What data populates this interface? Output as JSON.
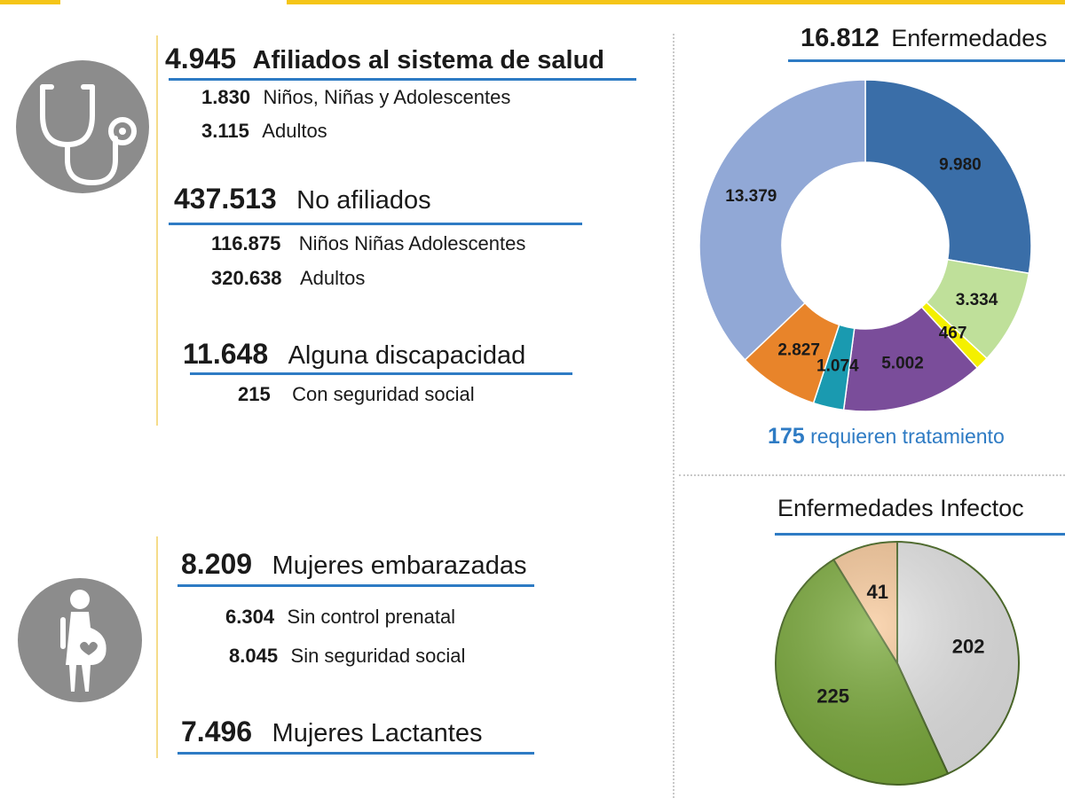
{
  "health": {
    "affiliated": {
      "value": "4.945",
      "label": "Afiliados al sistema de salud",
      "items": [
        {
          "value": "1.830",
          "label": "Niños, Niñas y  Adolescentes"
        },
        {
          "value": "3.115",
          "label": "Adultos"
        }
      ]
    },
    "not_affiliated": {
      "value": "437.513",
      "label": "No afiliados",
      "items": [
        {
          "value": "116.875",
          "label": "Niños Niñas Adolescentes"
        },
        {
          "value": "320.638",
          "label": "Adultos"
        }
      ]
    },
    "disability": {
      "value": "11.648",
      "label": "Alguna discapacidad",
      "items": [
        {
          "value": "215",
          "label": "Con seguridad social"
        }
      ]
    }
  },
  "women": {
    "pregnant": {
      "value": "8.209",
      "label": "Mujeres embarazadas",
      "items": [
        {
          "value": "6.304",
          "label": "Sin control prenatal"
        },
        {
          "value": "8.045",
          "label": "Sin seguridad social"
        }
      ]
    },
    "lactating": {
      "value": "7.496",
      "label": "Mujeres Lactantes"
    }
  },
  "icons": {
    "health": "stethoscope-icon",
    "women": "pregnant-woman-icon"
  },
  "colors": {
    "accent_yellow": "#f5c518",
    "underline_blue": "#2e7bc4"
  },
  "chart_data": [
    {
      "type": "pie",
      "variant": "donut",
      "title_value": "16.812",
      "title": "Enfermedades",
      "slices": [
        {
          "label": "9.980",
          "value": 9980,
          "color": "#3a6ea8"
        },
        {
          "label": "3.334",
          "value": 3334,
          "color": "#bfe09a"
        },
        {
          "label": "467",
          "value": 467,
          "color": "#f4f000"
        },
        {
          "label": "5.002",
          "value": 5002,
          "color": "#7a4d9a"
        },
        {
          "label": "1.074",
          "value": 1074,
          "color": "#1a9ab0"
        },
        {
          "label": "2.827",
          "value": 2827,
          "color": "#e8842a"
        },
        {
          "label": "13.379",
          "value": 13379,
          "color": "#91a8d6"
        }
      ],
      "note_value": "175",
      "note_label": "requieren tratamiento"
    },
    {
      "type": "pie",
      "title": "Enfermedades Infectoc",
      "slices": [
        {
          "label": "202",
          "value": 202,
          "color": "#e6e6e6"
        },
        {
          "label": "225",
          "value": 225,
          "color": "#7aaa3a"
        },
        {
          "label": "41",
          "value": 41,
          "color": "#f8c99a"
        }
      ]
    }
  ]
}
